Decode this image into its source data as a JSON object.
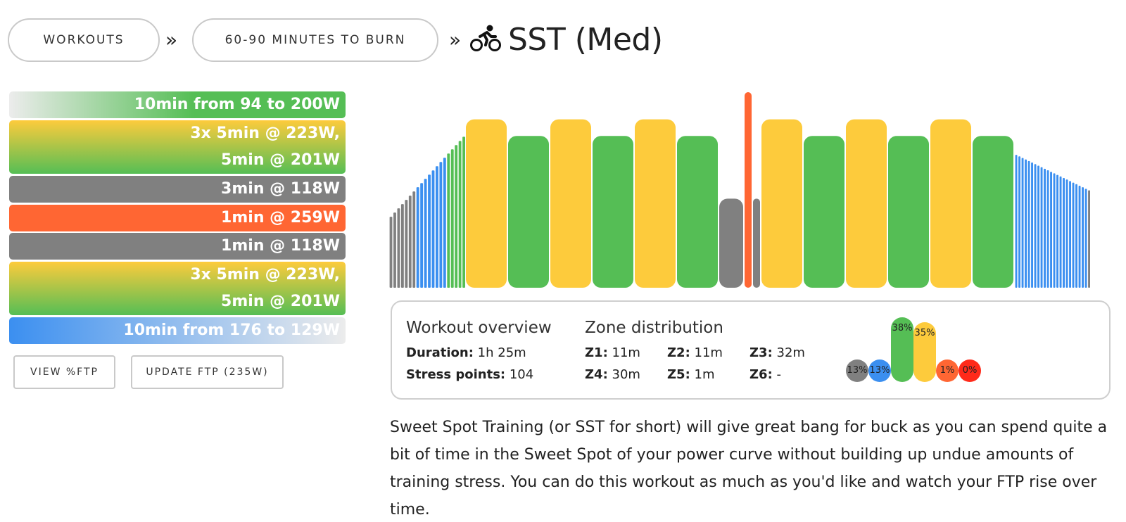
{
  "breadcrumb": {
    "items": [
      "WORKOUTS",
      "60-90 MINUTES TO BURN"
    ],
    "separator": "»",
    "title": "SST (Med)",
    "title_icon": "cyclist-icon"
  },
  "intervals": [
    {
      "line1": "10min from 94 to 200W",
      "line2": "",
      "style": "ramp-up-green"
    },
    {
      "line1": "3x 5min @ 223W,",
      "line2": "5min @ 201W",
      "style": "yellow-green"
    },
    {
      "line1": "3min @ 118W",
      "line2": "",
      "style": "grey"
    },
    {
      "line1": "1min @ 259W",
      "line2": "",
      "style": "red"
    },
    {
      "line1": "1min @ 118W",
      "line2": "",
      "style": "grey"
    },
    {
      "line1": "3x 5min @ 223W,",
      "line2": "5min @ 201W",
      "style": "yellow-green"
    },
    {
      "line1": "10min from 176 to 129W",
      "line2": "",
      "style": "ramp-down-blue"
    }
  ],
  "buttons": {
    "view_ftp": "VIEW %FTP",
    "update_ftp": "UPDATE FTP (235W)"
  },
  "colors": {
    "grey": "#808080",
    "blue": "#3b8ff0",
    "green": "#55be55",
    "yellow": "#fdcb3c",
    "orange": "#ff6633",
    "red": "#ff2a1a"
  },
  "overview": {
    "heading": "Workout overview",
    "duration_label": "Duration:",
    "duration_value": "1h 25m",
    "stress_label": "Stress points:",
    "stress_value": "104"
  },
  "zones": {
    "heading": "Zone distribution",
    "items": [
      {
        "label": "Z1:",
        "value": "11m"
      },
      {
        "label": "Z2:",
        "value": "11m"
      },
      {
        "label": "Z3:",
        "value": "32m"
      },
      {
        "label": "Z4:",
        "value": "30m"
      },
      {
        "label": "Z5:",
        "value": "1m"
      },
      {
        "label": "Z6:",
        "value": "-"
      }
    ],
    "distribution": [
      {
        "pct": "13%",
        "value": 13,
        "color": "#808080"
      },
      {
        "pct": "13%",
        "value": 13,
        "color": "#3b8ff0"
      },
      {
        "pct": "38%",
        "value": 38,
        "color": "#55be55"
      },
      {
        "pct": "35%",
        "value": 35,
        "color": "#fdcb3c"
      },
      {
        "pct": "1%",
        "value": 1,
        "color": "#ff6633"
      },
      {
        "pct": "0%",
        "value": 0,
        "color": "#ff2a1a"
      }
    ]
  },
  "description": "Sweet Spot Training (or SST for short) will give great bang for buck as you can spend quite a bit of time in the Sweet Spot of your power curve without building up undue amounts of training stress. You can do this workout as much as you'd like and watch your FTP rise over time."
}
